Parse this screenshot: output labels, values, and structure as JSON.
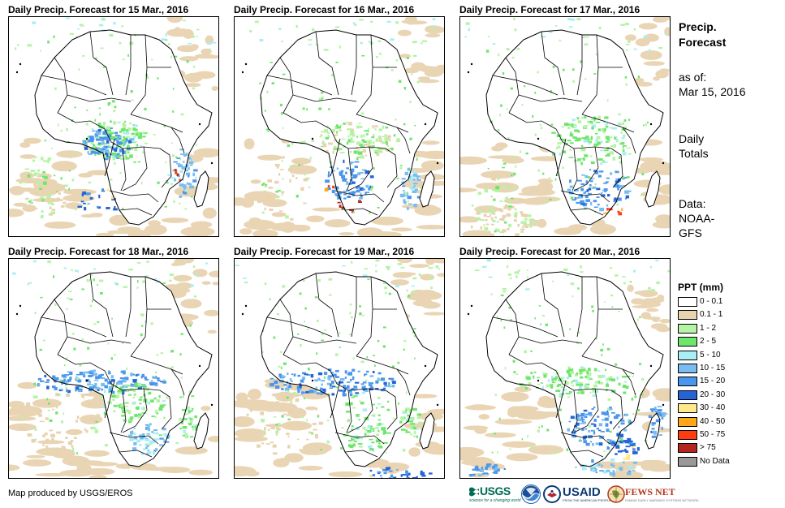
{
  "panels": [
    {
      "title": "Daily Precip. Forecast for 15 Mar., 2016"
    },
    {
      "title": "Daily Precip. Forecast for 16 Mar., 2016"
    },
    {
      "title": "Daily Precip. Forecast for 17 Mar., 2016"
    },
    {
      "title": "Daily Precip. Forecast for 18 Mar., 2016"
    },
    {
      "title": "Daily Precip. Forecast for 19 Mar., 2016"
    },
    {
      "title": "Daily Precip. Forecast for 20 Mar., 2016"
    }
  ],
  "sidebar": {
    "title_line1": "Precip.",
    "title_line2": "Forecast",
    "asof_label": "as of:",
    "asof_date": "Mar 15, 2016",
    "daily_line1": "Daily",
    "daily_line2": "Totals",
    "data_line1": "Data:",
    "data_line2": "NOAA-",
    "data_line3": "GFS"
  },
  "legend": {
    "title": "PPT (mm)",
    "items": [
      {
        "label": "0 - 0.1",
        "color": "#ffffff"
      },
      {
        "label": "0.1 - 1",
        "color": "#e8d3b0"
      },
      {
        "label": "1 - 2",
        "color": "#b4f4a4"
      },
      {
        "label": "2 - 5",
        "color": "#6ee66c"
      },
      {
        "label": "5 - 10",
        "color": "#a8eef4"
      },
      {
        "label": "10 - 15",
        "color": "#78bcf0"
      },
      {
        "label": "15 - 20",
        "color": "#4b96ec"
      },
      {
        "label": "20 - 30",
        "color": "#2563d6"
      },
      {
        "label": "30 - 40",
        "color": "#ffe98c"
      },
      {
        "label": "40 - 50",
        "color": "#ffa61a"
      },
      {
        "label": "50 - 75",
        "color": "#ff3b10"
      },
      {
        "label": "> 75",
        "color": "#b3261e"
      },
      {
        "label": "No Data",
        "color": "#999999"
      }
    ]
  },
  "credit": "Map produced by USGS/EROS",
  "logos": {
    "usgs": "USGS",
    "usgs_tagline": "science for a changing world",
    "usaid": "USAID",
    "usaid_tagline": "FROM THE AMERICAN PEOPLE",
    "fews": "FEWS NET",
    "fews_tagline": "FAMINE EARLY WARNING SYSTEMS NETWORK"
  }
}
